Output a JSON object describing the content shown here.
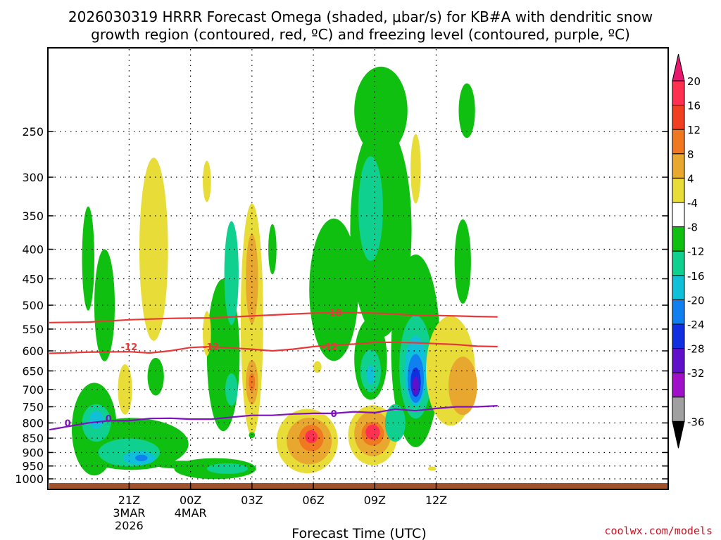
{
  "chart_data": {
    "type": "heatmap",
    "title_line1": "2026030319 HRRR Forecast Omega (shaded, μbar/s) for KB#A with dendritic snow",
    "title_line2": "growth region (contoured, red, ºC) and freezing level (contoured, purple, ºC)",
    "xlabel": "Forecast Time (UTC)",
    "ylabel": "",
    "credit": "coolwx.com/models",
    "x_units": "hours",
    "x_range": [
      19,
      13
    ],
    "x_range_note": "",
    "xlim": [
      -1.9,
      28.3
    ],
    "ylim_hpa": [
      1040,
      180
    ],
    "x_ticks": [
      {
        "x": 2,
        "lines": [
          "21Z",
          "3MAR",
          "2026"
        ]
      },
      {
        "x": 5,
        "lines": [
          "00Z",
          "4MAR"
        ]
      },
      {
        "x": 8,
        "lines": [
          "03Z"
        ]
      },
      {
        "x": 11,
        "lines": [
          "06Z"
        ]
      },
      {
        "x": 14,
        "lines": [
          "09Z"
        ]
      },
      {
        "x": 17,
        "lines": [
          "12Z"
        ]
      }
    ],
    "y_ticks": [
      250,
      300,
      350,
      400,
      450,
      500,
      550,
      600,
      650,
      700,
      750,
      800,
      850,
      900,
      950,
      1000
    ],
    "colorbar": {
      "labels": [
        "20",
        "16",
        "12",
        "8",
        "4",
        "-4",
        "-8",
        "-12",
        "-16",
        "-20",
        "-24",
        "-28",
        "-32",
        "-36"
      ],
      "colors": [
        "#ff3050",
        "#f04020",
        "#f07820",
        "#e8a830",
        "#e8dc38",
        "#ffffff",
        "#10c010",
        "#10d090",
        "#10c0d8",
        "#1080f0",
        "#1030e0",
        "#6010c8",
        "#a010c8",
        "#a0a0a0"
      ],
      "top_arrow_color": "#e8186e",
      "bottom_arrow_color": "#000000"
    },
    "shading_levels": [
      {
        "name": "4 to 8",
        "color": "#e8dc38"
      },
      {
        "name": "8 to 12",
        "color": "#e8a830"
      },
      {
        "name": "12 to 16",
        "color": "#f07820"
      },
      {
        "name": "16 to 20",
        "color": "#ff3050"
      },
      {
        "name": "-4 to -8",
        "color": "#10c010"
      },
      {
        "name": "-8 to -12",
        "color": "#10d090"
      },
      {
        "name": "-12 to -16",
        "color": "#10c0d8"
      },
      {
        "name": "-16 to -20",
        "color": "#1080f0"
      },
      {
        "name": "-20 to -24",
        "color": "#1030e0"
      },
      {
        "name": "-24 to -28",
        "color": "#6010c8"
      },
      {
        "name": "-28 to -32",
        "color": "#a010c8"
      }
    ],
    "contours": [
      {
        "name": "-18 ºC isotherm (dendritic growth top)",
        "color": "#e83838",
        "label": "-18",
        "label_at": [
          12.0,
          515
        ],
        "points": [
          [
            -1.9,
            536
          ],
          [
            0,
            535
          ],
          [
            2,
            530
          ],
          [
            4,
            527
          ],
          [
            6,
            526
          ],
          [
            8,
            522
          ],
          [
            10,
            518
          ],
          [
            11,
            516
          ],
          [
            12,
            515
          ],
          [
            13,
            515
          ],
          [
            14,
            516
          ],
          [
            15,
            518
          ],
          [
            16,
            521
          ],
          [
            17,
            521
          ],
          [
            18,
            522
          ],
          [
            19,
            523
          ],
          [
            20,
            524
          ]
        ]
      },
      {
        "name": "-12 ºC isotherm (dendritic growth bottom)",
        "color": "#e83838",
        "label": "-12",
        "label_at": [
          6.0,
          590
        ],
        "points": [
          [
            -1.9,
            606
          ],
          [
            0,
            603
          ],
          [
            2,
            602
          ],
          [
            3,
            605
          ],
          [
            4,
            600
          ],
          [
            5,
            592
          ],
          [
            6,
            590
          ],
          [
            7,
            593
          ],
          [
            8,
            596
          ],
          [
            9,
            600
          ],
          [
            10,
            596
          ],
          [
            11,
            590
          ],
          [
            12,
            586
          ],
          [
            13,
            584
          ],
          [
            14,
            580
          ],
          [
            15,
            580
          ],
          [
            16,
            581
          ],
          [
            17,
            583
          ],
          [
            18,
            585
          ],
          [
            19,
            589
          ],
          [
            20,
            590
          ]
        ]
      },
      {
        "name": "0 ºC freezing level",
        "color": "#8010c0",
        "label": "0",
        "label_at": [
          12.0,
          770
        ],
        "points": [
          [
            -1.9,
            822
          ],
          [
            0,
            800
          ],
          [
            1,
            793
          ],
          [
            2,
            793
          ],
          [
            3,
            786
          ],
          [
            4,
            785
          ],
          [
            5,
            788
          ],
          [
            6,
            788
          ],
          [
            7,
            782
          ],
          [
            8,
            776
          ],
          [
            9,
            776
          ],
          [
            10,
            772
          ],
          [
            11,
            770
          ],
          [
            12,
            770
          ],
          [
            13,
            765
          ],
          [
            14,
            768
          ],
          [
            15,
            757
          ],
          [
            16,
            762
          ],
          [
            17,
            755
          ],
          [
            18,
            750
          ],
          [
            19,
            750
          ],
          [
            20,
            747
          ]
        ]
      },
      {
        "name": "-12 ºC label",
        "color": "#e83838",
        "label": "-12",
        "label_at": [
          2.0,
          590
        ],
        "points": []
      },
      {
        "name": "-12 ºC label (later)",
        "color": "#e83838",
        "label": "-12",
        "label_at": [
          11.8,
          590
        ],
        "points": []
      },
      {
        "name": "0 ºC label (early)",
        "color": "#8010c0",
        "label": "0",
        "label_at": [
          1.0,
          786
        ],
        "points": []
      },
      {
        "name": "0 ºC label (left)",
        "color": "#8010c0",
        "label": "0",
        "label_at": [
          -1.0,
          800
        ],
        "points": []
      }
    ]
  }
}
